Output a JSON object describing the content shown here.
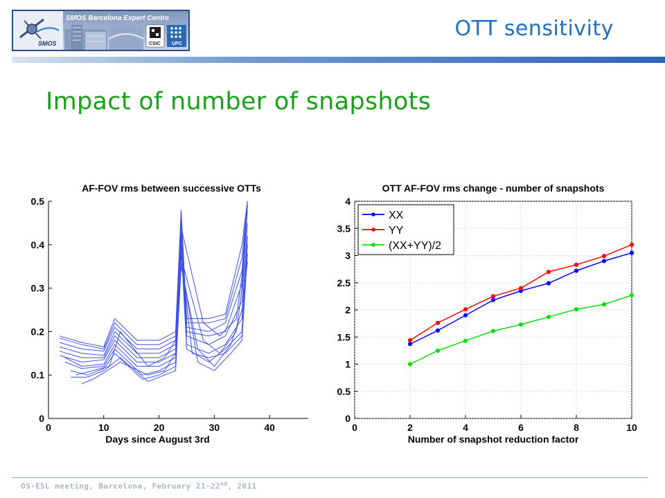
{
  "header": {
    "title": "OTT sensitivity",
    "logo": {
      "banner_text": "SMOS Barcelona Expert Centre",
      "mission_text": "SMOS",
      "csic_text": "CSIC",
      "upc_text": "UPC"
    }
  },
  "subtitle": "Impact of number of snapshots",
  "footer": {
    "prefix": "OS-ESL meeting, Barcelona, February 21-22",
    "superscript": "nd",
    "suffix": ", 2011"
  },
  "colors": {
    "title_blue": "#1f6fc0",
    "subtitle_green": "#19a119",
    "trace_blue": "#3f4fe8"
  },
  "chart_data": [
    {
      "type": "line",
      "title": "AF-FOV rms between successive OTTs",
      "xlabel": "Days since August 3rd",
      "ylabel": "",
      "xlim": [
        0,
        47
      ],
      "ylim": [
        0,
        0.5
      ],
      "xticks": [
        "0",
        "10",
        "20",
        "30",
        "40"
      ],
      "yticks": [
        "0",
        "0.1",
        "0.2",
        "0.3",
        "0.4",
        "0.5"
      ],
      "grid": false,
      "legend": "none",
      "series": [
        {
          "x": [
            2,
            6,
            10,
            12,
            16,
            20,
            23,
            24,
            25,
            29,
            32,
            35,
            36
          ],
          "y": [
            0.19,
            0.175,
            0.165,
            0.23,
            0.18,
            0.18,
            0.2,
            0.48,
            0.23,
            0.23,
            0.24,
            0.4,
            0.5
          ]
        },
        {
          "x": [
            2,
            6,
            10,
            12,
            16,
            20,
            23,
            24,
            25,
            29,
            32,
            35,
            36
          ],
          "y": [
            0.185,
            0.17,
            0.16,
            0.22,
            0.17,
            0.17,
            0.19,
            0.47,
            0.22,
            0.22,
            0.23,
            0.37,
            0.5
          ]
        },
        {
          "x": [
            2,
            6,
            10,
            12,
            16,
            20,
            23,
            24,
            25,
            29,
            32,
            35,
            36
          ],
          "y": [
            0.175,
            0.16,
            0.155,
            0.21,
            0.16,
            0.16,
            0.18,
            0.46,
            0.21,
            0.2,
            0.22,
            0.34,
            0.5
          ]
        },
        {
          "x": [
            2,
            6,
            10,
            12,
            16,
            20,
            23,
            24,
            25,
            29,
            32,
            35,
            36
          ],
          "y": [
            0.165,
            0.15,
            0.145,
            0.2,
            0.15,
            0.15,
            0.17,
            0.45,
            0.2,
            0.19,
            0.2,
            0.31,
            0.5
          ]
        },
        {
          "x": [
            2,
            6,
            10,
            12,
            16,
            20,
            23,
            24,
            25,
            29,
            32,
            35,
            36
          ],
          "y": [
            0.155,
            0.14,
            0.14,
            0.19,
            0.14,
            0.14,
            0.16,
            0.44,
            0.19,
            0.17,
            0.19,
            0.27,
            0.49
          ]
        },
        {
          "x": [
            2,
            6,
            10,
            12,
            16,
            20,
            23,
            24,
            25,
            29,
            32,
            35,
            36
          ],
          "y": [
            0.145,
            0.13,
            0.135,
            0.18,
            0.13,
            0.13,
            0.15,
            0.42,
            0.17,
            0.15,
            0.17,
            0.23,
            0.45
          ]
        },
        {
          "x": [
            3,
            6,
            10,
            12,
            16,
            20,
            23,
            24,
            25,
            29,
            32,
            35,
            36
          ],
          "y": [
            0.14,
            0.12,
            0.125,
            0.17,
            0.12,
            0.12,
            0.14,
            0.4,
            0.16,
            0.13,
            0.16,
            0.2,
            0.42
          ]
        },
        {
          "x": [
            3,
            6,
            10,
            12,
            17,
            20,
            23,
            24,
            26,
            29,
            32,
            35,
            36
          ],
          "y": [
            0.13,
            0.115,
            0.12,
            0.16,
            0.1,
            0.11,
            0.13,
            0.38,
            0.15,
            0.14,
            0.15,
            0.19,
            0.4
          ]
        },
        {
          "x": [
            4,
            7,
            10,
            12,
            17,
            20,
            23,
            24,
            27,
            30,
            33,
            35,
            36
          ],
          "y": [
            0.11,
            0.1,
            0.115,
            0.15,
            0.09,
            0.1,
            0.12,
            0.36,
            0.13,
            0.11,
            0.15,
            0.18,
            0.38
          ]
        },
        {
          "x": [
            4,
            7,
            10,
            13,
            18,
            21,
            23,
            24,
            27,
            30,
            33,
            35,
            36
          ],
          "y": [
            0.095,
            0.095,
            0.11,
            0.14,
            0.085,
            0.1,
            0.11,
            0.35,
            0.16,
            0.12,
            0.17,
            0.25,
            0.36
          ]
        },
        {
          "x": [
            6,
            8,
            10,
            13,
            18,
            21,
            23,
            24,
            28,
            31,
            34,
            35,
            36
          ],
          "y": [
            0.08,
            0.09,
            0.105,
            0.13,
            0.1,
            0.11,
            0.15,
            0.37,
            0.18,
            0.15,
            0.2,
            0.3,
            0.5
          ]
        },
        {
          "x": [
            5,
            8,
            11,
            13,
            18,
            21,
            23,
            24,
            28,
            31,
            34,
            35,
            36
          ],
          "y": [
            0.1,
            0.11,
            0.12,
            0.2,
            0.12,
            0.14,
            0.18,
            0.44,
            0.22,
            0.19,
            0.23,
            0.33,
            0.48
          ]
        }
      ]
    },
    {
      "type": "line",
      "title": "OTT AF-FOV rms change - number of snapshots",
      "xlabel": "Number of snapshot reduction factor",
      "ylabel": "",
      "xlim": [
        0,
        10
      ],
      "ylim": [
        0,
        4
      ],
      "xticks": [
        "0",
        "2",
        "4",
        "6",
        "8",
        "10"
      ],
      "yticks": [
        "0",
        "0.5",
        "1",
        "1.5",
        "2",
        "2.5",
        "3",
        "3.5",
        "4"
      ],
      "grid": true,
      "legend": "top-left",
      "x": [
        2,
        3,
        4,
        5,
        6,
        7,
        8,
        9,
        10
      ],
      "series": [
        {
          "name": "XX",
          "color": "#0000ff",
          "values": [
            1.37,
            1.62,
            1.9,
            2.18,
            2.35,
            2.49,
            2.72,
            2.9,
            3.05
          ]
        },
        {
          "name": "YY",
          "color": "#ff0000",
          "values": [
            1.44,
            1.76,
            2.01,
            2.25,
            2.4,
            2.7,
            2.83,
            2.99,
            3.2
          ]
        },
        {
          "name": "(XX+YY)/2",
          "color": "#00e000",
          "values": [
            1.0,
            1.25,
            1.43,
            1.61,
            1.73,
            1.87,
            2.01,
            2.1,
            2.27
          ]
        }
      ]
    }
  ]
}
